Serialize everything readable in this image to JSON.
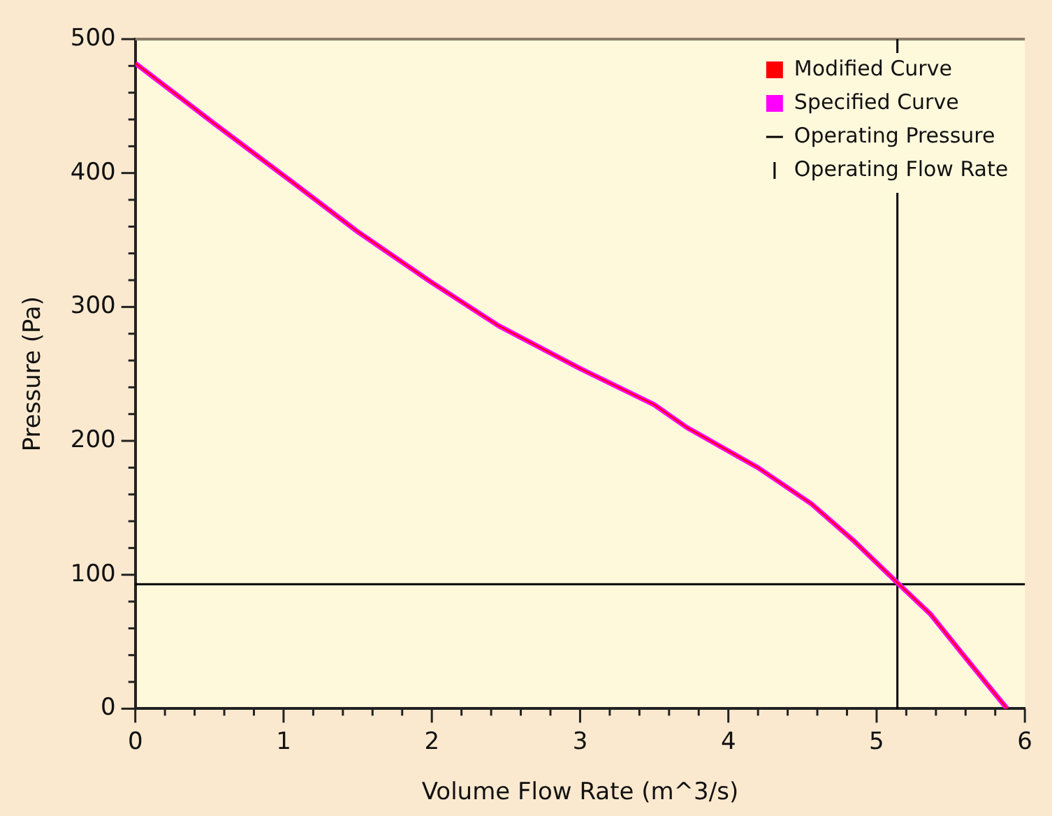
{
  "chart_data": {
    "type": "line",
    "xlabel": "Volume Flow Rate (m^3/s)",
    "ylabel": "Pressure (Pa)",
    "x": [
      0,
      0.52,
      1.05,
      1.49,
      1.99,
      2.45,
      3,
      3.5,
      3.72,
      4.2,
      4.56,
      4.85,
      5.14,
      5.36,
      5.6,
      5.88
    ],
    "series": [
      {
        "name": "Modified Curve",
        "color": "#ff0000",
        "values": [
          482,
          438,
          394,
          357,
          319,
          286,
          254,
          227,
          210,
          180,
          153,
          125,
          94,
          71,
          38,
          0
        ]
      },
      {
        "name": "Specified Curve",
        "color": "#ff00ff",
        "values": [
          482,
          438,
          394,
          357,
          319,
          286,
          254,
          227,
          210,
          180,
          153,
          125,
          94,
          71,
          38,
          0
        ]
      }
    ],
    "xlim": [
      0,
      6
    ],
    "xticks": [
      0,
      {
        "value": 0.2,
        "label": null
      },
      {
        "value": 0.4,
        "label": null
      },
      {
        "value": 0.6,
        "label": null
      },
      {
        "value": 0.8,
        "label": null
      },
      1,
      {
        "value": 1.2,
        "label": null
      },
      {
        "value": 1.4,
        "label": null
      },
      {
        "value": 1.6,
        "label": null
      },
      {
        "value": 1.8,
        "label": null
      },
      2,
      {
        "value": 2.2,
        "label": null
      },
      {
        "value": 2.4,
        "label": null
      },
      {
        "value": 2.6,
        "label": null
      },
      {
        "value": 2.8,
        "label": null
      },
      3,
      {
        "value": 3.2,
        "label": null
      },
      {
        "value": 3.4,
        "label": null
      },
      {
        "value": 3.6,
        "label": null
      },
      {
        "value": 3.8,
        "label": null
      },
      4,
      {
        "value": 4.2,
        "label": null
      },
      {
        "value": 4.4,
        "label": null
      },
      {
        "value": 4.6,
        "label": null
      },
      {
        "value": 4.8,
        "label": null
      },
      5,
      {
        "value": 5.2,
        "label": null
      },
      {
        "value": 5.4,
        "label": null
      },
      {
        "value": 5.6,
        "label": null
      },
      {
        "value": 5.8,
        "label": null
      },
      6
    ],
    "ylim": [
      0,
      500
    ],
    "yticks": [
      0,
      {
        "value": 20,
        "label": null
      },
      {
        "value": 40,
        "label": null
      },
      {
        "value": 60,
        "label": null
      },
      {
        "value": 80,
        "label": null
      },
      100,
      {
        "value": 120,
        "label": null
      },
      {
        "value": 140,
        "label": null
      },
      {
        "value": 160,
        "label": null
      },
      {
        "value": 180,
        "label": null
      },
      200,
      {
        "value": 220,
        "label": null
      },
      {
        "value": 240,
        "label": null
      },
      {
        "value": 260,
        "label": null
      },
      {
        "value": 280,
        "label": null
      },
      300,
      {
        "value": 320,
        "label": null
      },
      {
        "value": 340,
        "label": null
      },
      {
        "value": 360,
        "label": null
      },
      {
        "value": 380,
        "label": null
      },
      400,
      {
        "value": 420,
        "label": null
      },
      {
        "value": 440,
        "label": null
      },
      {
        "value": 460,
        "label": null
      },
      {
        "value": 480,
        "label": null
      },
      500
    ],
    "ref_lines": [
      {
        "axis": "y",
        "value": 93,
        "label": "Operating Pressure",
        "color": "#000000"
      },
      {
        "axis": "x",
        "value": 5.14,
        "label": "Operating Flow Rate",
        "color": "#000000"
      }
    ],
    "legend": "top right",
    "grid": false,
    "marker": "none",
    "line_style": "solid"
  }
}
